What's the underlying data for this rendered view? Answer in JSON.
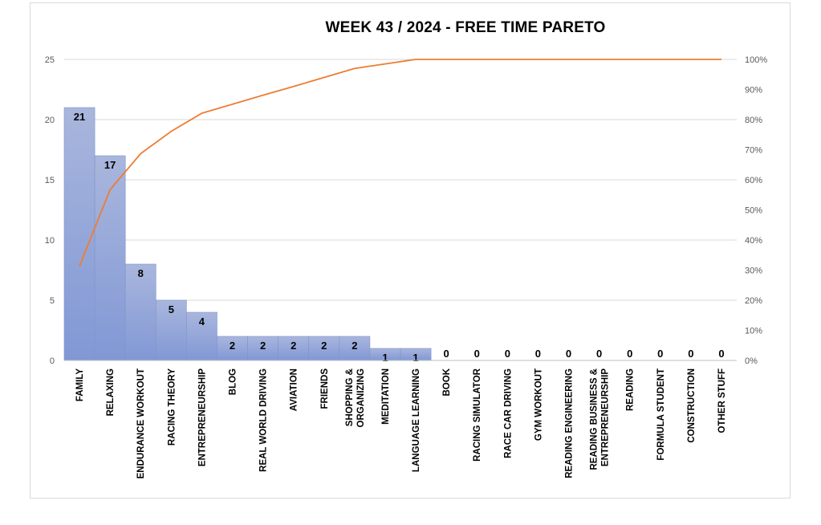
{
  "chart_data": {
    "type": "bar",
    "title": "WEEK 43 / 2024  - FREE TIME PARETO",
    "categories": [
      [
        "FAMILY"
      ],
      [
        "RELAXING"
      ],
      [
        "ENDURANCE WORKOUT"
      ],
      [
        "RACING THEORY"
      ],
      [
        "ENTREPRENEURSHIP"
      ],
      [
        "BLOG"
      ],
      [
        "REAL WORLD DRIVING"
      ],
      [
        "AVIATION"
      ],
      [
        "FRIENDS"
      ],
      [
        "SHOPPING &",
        "ORGANIZING"
      ],
      [
        "MEDITATION"
      ],
      [
        "LANGUAGE LEARNING"
      ],
      [
        "BOOK"
      ],
      [
        "RACING SIMULATOR"
      ],
      [
        "RACE CAR DRIVING"
      ],
      [
        "GYM WORKOUT"
      ],
      [
        "READING ENGINEERING"
      ],
      [
        "READING BUSINESS &",
        "ENTREPRENEURSHIP"
      ],
      [
        "READING"
      ],
      [
        "FORMULA STUDENT"
      ],
      [
        "CONSTRUCTION"
      ],
      [
        "OTHER STUFF"
      ]
    ],
    "values": [
      21,
      17,
      8,
      5,
      4,
      2,
      2,
      2,
      2,
      2,
      1,
      1,
      0,
      0,
      0,
      0,
      0,
      0,
      0,
      0,
      0,
      0
    ],
    "cumulative_percent": [
      31.3,
      56.7,
      68.7,
      76.1,
      82.1,
      85.1,
      88.1,
      91.0,
      94.0,
      97.0,
      98.5,
      100,
      100,
      100,
      100,
      100,
      100,
      100,
      100,
      100,
      100,
      100
    ],
    "ylim": [
      0,
      25
    ],
    "yticks": [
      "0",
      "5",
      "10",
      "15",
      "20",
      "25"
    ],
    "y2lim": [
      0,
      100
    ],
    "y2ticks": [
      "0%",
      "10%",
      "20%",
      "30%",
      "40%",
      "50%",
      "60%",
      "70%",
      "80%",
      "90%",
      "100%"
    ],
    "grid": true,
    "colors": {
      "bar": "#8fa4d8",
      "bar_top": "#a9b6dd",
      "line": "#ed7d31",
      "grid": "#d9d9d9"
    }
  }
}
